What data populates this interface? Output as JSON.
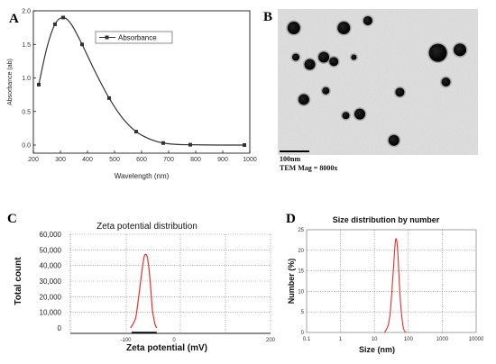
{
  "panels": {
    "A": "A",
    "B": "B",
    "C": "C",
    "D": "D"
  },
  "chart_data": [
    {
      "id": "A",
      "type": "line",
      "title": "",
      "xlabel": "Wavelength (nm)",
      "ylabel": "Absorbance (ab)",
      "legend": [
        "Absorbance"
      ],
      "legend_position": "top-center",
      "xlim": [
        200,
        1000
      ],
      "ylim": [
        0,
        2.0
      ],
      "xticks": [
        200,
        300,
        400,
        500,
        600,
        700,
        800,
        900,
        1000
      ],
      "yticks": [
        0.0,
        0.5,
        1.0,
        1.5,
        2.0
      ],
      "series": [
        {
          "name": "Absorbance",
          "marker": "square",
          "x": [
            220,
            280,
            310,
            380,
            480,
            580,
            680,
            780,
            980
          ],
          "y": [
            0.9,
            1.8,
            1.9,
            1.5,
            0.7,
            0.2,
            0.03,
            0.005,
            0.0
          ]
        }
      ],
      "curve": [
        [
          220,
          0.9
        ],
        [
          250,
          1.45
        ],
        [
          280,
          1.8
        ],
        [
          310,
          1.9
        ],
        [
          340,
          1.8
        ],
        [
          380,
          1.5
        ],
        [
          430,
          1.08
        ],
        [
          480,
          0.7
        ],
        [
          530,
          0.4
        ],
        [
          580,
          0.2
        ],
        [
          630,
          0.09
        ],
        [
          680,
          0.03
        ],
        [
          730,
          0.01
        ],
        [
          780,
          0.005
        ],
        [
          880,
          0.0
        ],
        [
          980,
          0.0
        ]
      ]
    },
    {
      "id": "C",
      "type": "line",
      "title": "Zeta potential distribution",
      "xlabel": "Zeta potential (mV)",
      "ylabel": "Total count",
      "xlim": [
        -200,
        200
      ],
      "ylim": [
        0,
        60000
      ],
      "xticks": [
        -100,
        0,
        200
      ],
      "yticks": [
        0,
        10000,
        20000,
        30000,
        40000,
        50000,
        60000
      ],
      "ytick_labels": [
        "0",
        "10,000",
        "20,000",
        "30,000",
        "40,000",
        "50,000",
        "60,000"
      ],
      "grid": true,
      "series": [
        {
          "name": "",
          "color": "#e53030",
          "x": [
            -90,
            -80,
            -75,
            -70,
            -65,
            -62,
            -60,
            -56,
            -52,
            -48,
            -45,
            -40,
            -36
          ],
          "y": [
            0,
            6000,
            16000,
            28000,
            40000,
            45500,
            47000,
            46000,
            38000,
            24000,
            12000,
            3000,
            0
          ]
        }
      ]
    },
    {
      "id": "D",
      "type": "line",
      "title": "Size distribution by number",
      "xlabel": "Size (nm)",
      "ylabel": "Number (%)",
      "xscale": "log",
      "xlim": [
        0.1,
        10000
      ],
      "ylim": [
        0,
        25
      ],
      "xticks": [
        0.1,
        1,
        10,
        100,
        1000,
        10000
      ],
      "xtick_labels": [
        "0.1",
        "1",
        "10",
        "100",
        "1000",
        "10000"
      ],
      "yticks": [
        0,
        5,
        10,
        15,
        20,
        25
      ],
      "grid": true,
      "series": [
        {
          "name": "",
          "color": "#e53030",
          "x": [
            20,
            26,
            30,
            34,
            38,
            42,
            46,
            50,
            55,
            62,
            72,
            85
          ],
          "y": [
            0,
            2,
            6,
            12,
            18,
            22.5,
            22,
            18,
            11,
            5,
            1,
            0
          ]
        }
      ]
    }
  ],
  "tem": {
    "scale_label": "100nm",
    "mag_label": "TEM Mag = 8000x",
    "particles": [
      [
        0.08,
        0.13,
        7
      ],
      [
        0.33,
        0.13,
        7
      ],
      [
        0.45,
        0.08,
        5
      ],
      [
        0.09,
        0.33,
        4
      ],
      [
        0.16,
        0.38,
        6
      ],
      [
        0.23,
        0.33,
        6
      ],
      [
        0.28,
        0.36,
        5
      ],
      [
        0.38,
        0.33,
        3
      ],
      [
        0.8,
        0.3,
        10
      ],
      [
        0.91,
        0.28,
        7
      ],
      [
        0.13,
        0.62,
        6
      ],
      [
        0.61,
        0.57,
        5
      ],
      [
        0.84,
        0.5,
        5
      ],
      [
        0.41,
        0.72,
        6
      ],
      [
        0.34,
        0.73,
        4
      ],
      [
        0.58,
        0.9,
        6
      ],
      [
        0.24,
        0.56,
        4
      ]
    ]
  }
}
